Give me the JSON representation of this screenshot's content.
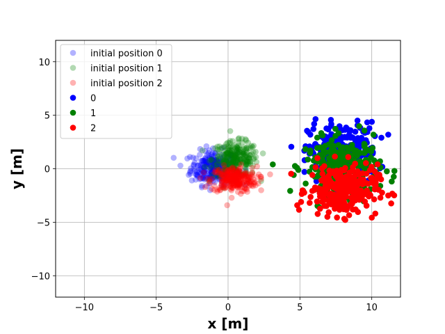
{
  "chart_data": {
    "type": "scatter",
    "title": "",
    "xlabel": "x [m]",
    "ylabel": "y [m]",
    "xlim": [
      -12,
      12
    ],
    "ylim": [
      -12,
      12
    ],
    "xticks": [
      -10,
      -5,
      0,
      5,
      10
    ],
    "yticks": [
      -10,
      -5,
      0,
      5,
      10
    ],
    "grid": true,
    "legend_position": "top-left",
    "series": [
      {
        "name": "initial position 0",
        "color": "#0000ff",
        "alpha": 0.3,
        "center": [
          -1.0,
          0.1
        ],
        "spread": [
          0.8,
          0.8
        ],
        "count": 260
      },
      {
        "name": "initial position 1",
        "color": "#008000",
        "alpha": 0.3,
        "center": [
          0.5,
          0.9
        ],
        "spread": [
          0.8,
          0.8
        ],
        "count": 260
      },
      {
        "name": "initial position 2",
        "color": "#ff0000",
        "alpha": 0.3,
        "center": [
          0.4,
          -1.0
        ],
        "spread": [
          0.8,
          0.6
        ],
        "count": 260
      },
      {
        "name": "0",
        "color": "#0000ff",
        "alpha": 1.0,
        "center": [
          8.0,
          1.5
        ],
        "spread": [
          1.2,
          1.4
        ],
        "count": 260
      },
      {
        "name": "1",
        "color": "#008000",
        "alpha": 1.0,
        "center": [
          8.0,
          0.2
        ],
        "spread": [
          1.3,
          1.3
        ],
        "count": 260
      },
      {
        "name": "2",
        "color": "#ff0000",
        "alpha": 1.0,
        "center": [
          8.0,
          -2.0
        ],
        "spread": [
          1.2,
          1.2
        ],
        "count": 260
      }
    ]
  }
}
